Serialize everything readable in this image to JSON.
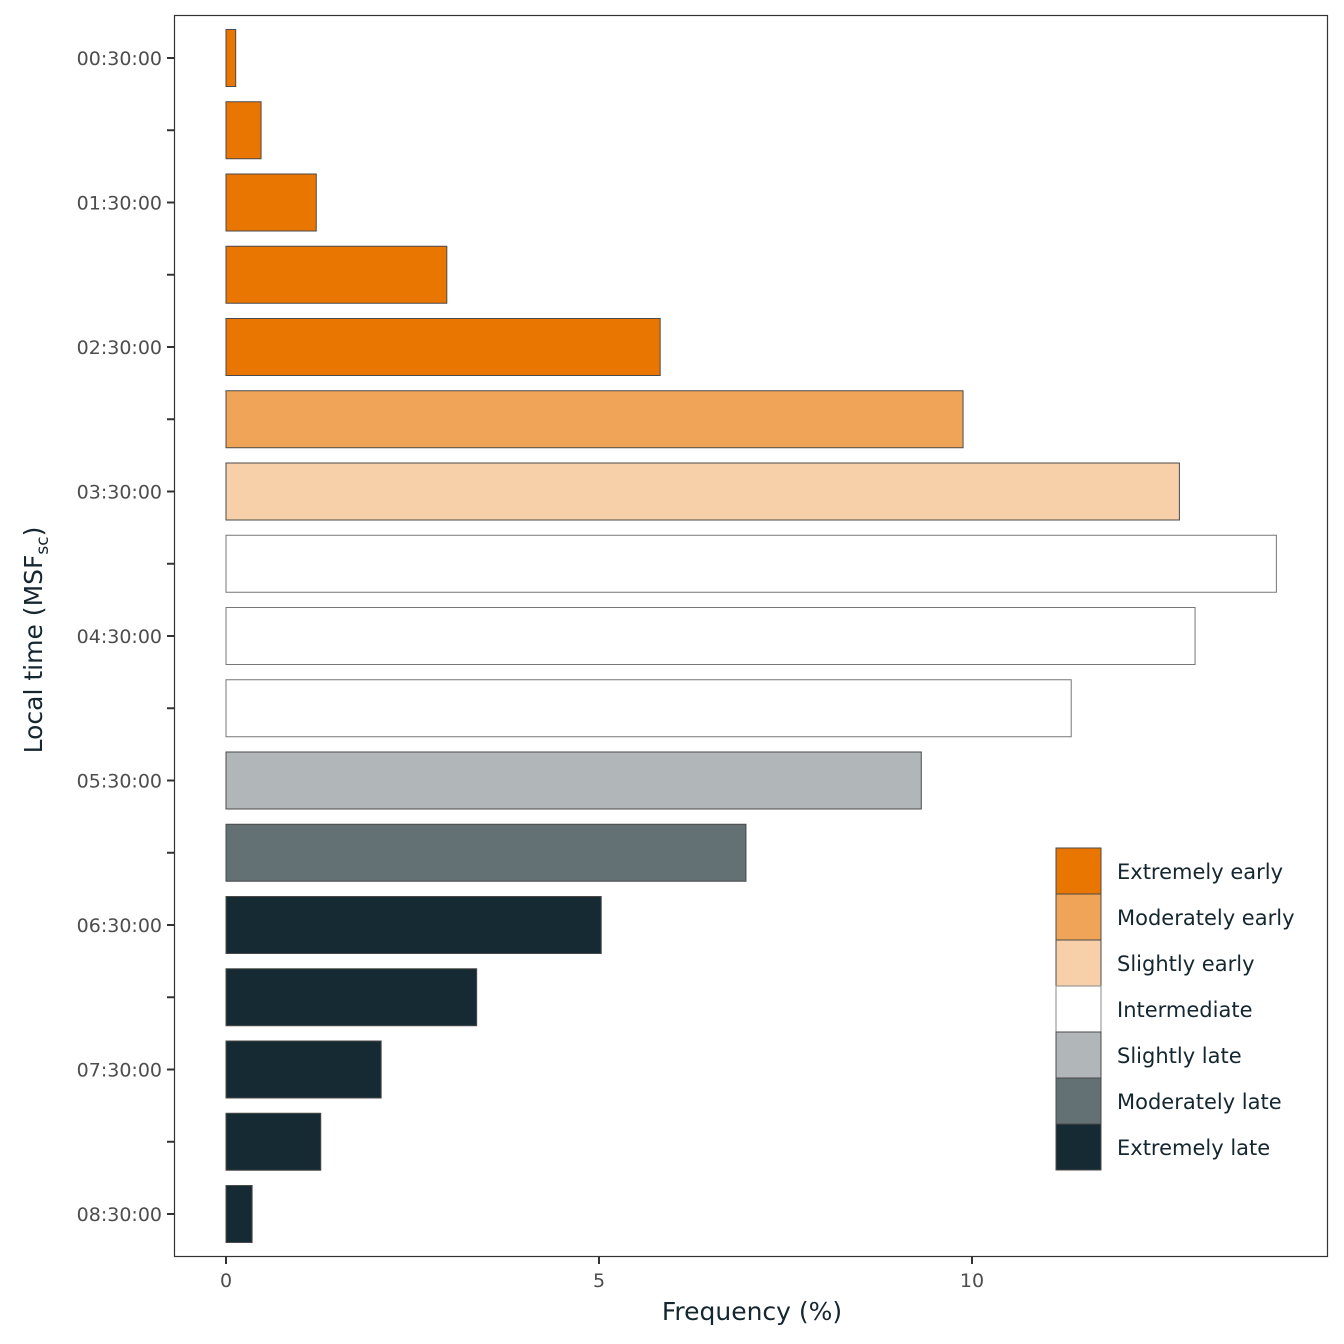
{
  "chart_data": {
    "type": "bar",
    "orientation": "horizontal",
    "title": "",
    "xlabel": "Frequency (%)",
    "ylabel": "Local time (MSF",
    "ylabel_subscript": "sc",
    "ylabel_close": ")",
    "xlim": [
      0,
      14.1
    ],
    "x_ticks": [
      0,
      5,
      10
    ],
    "x_tick_labels": [
      "0",
      "5",
      "10"
    ],
    "grid": false,
    "legend_position": "right-bottom-inside",
    "categories": [
      "00:30:00",
      "01:00:00",
      "01:30:00",
      "02:00:00",
      "02:30:00",
      "03:00:00",
      "03:30:00",
      "04:00:00",
      "04:30:00",
      "05:00:00",
      "05:30:00",
      "06:00:00",
      "06:30:00",
      "07:00:00",
      "07:30:00",
      "08:00:00",
      "08:30:00"
    ],
    "y_tick_labels_shown": [
      "00:30:00",
      "",
      "01:30:00",
      "",
      "02:30:00",
      "",
      "03:30:00",
      "",
      "04:30:00",
      "",
      "05:30:00",
      "",
      "06:30:00",
      "",
      "07:30:00",
      "",
      "08:30:00"
    ],
    "values": [
      0.13,
      0.47,
      1.21,
      2.96,
      5.82,
      9.88,
      12.78,
      14.08,
      12.99,
      11.33,
      9.32,
      6.97,
      5.03,
      3.36,
      2.08,
      1.27,
      0.35
    ],
    "bar_groups": [
      "Extremely early",
      "Extremely early",
      "Extremely early",
      "Extremely early",
      "Extremely early",
      "Moderately early",
      "Slightly early",
      "Intermediate",
      "Intermediate",
      "Intermediate",
      "Slightly late",
      "Moderately late",
      "Extremely late",
      "Extremely late",
      "Extremely late",
      "Extremely late",
      "Extremely late"
    ],
    "legend": [
      {
        "label": "Extremely early",
        "color": "#EA7602"
      },
      {
        "label": "Moderately early",
        "color": "#F0A457"
      },
      {
        "label": "Slightly early",
        "color": "#F7D0A9"
      },
      {
        "label": "Intermediate",
        "color": "#FFFFFF"
      },
      {
        "label": "Slightly late",
        "color": "#B1B7B9"
      },
      {
        "label": "Moderately late",
        "color": "#637074"
      },
      {
        "label": "Extremely late",
        "color": "#162A33"
      }
    ]
  }
}
